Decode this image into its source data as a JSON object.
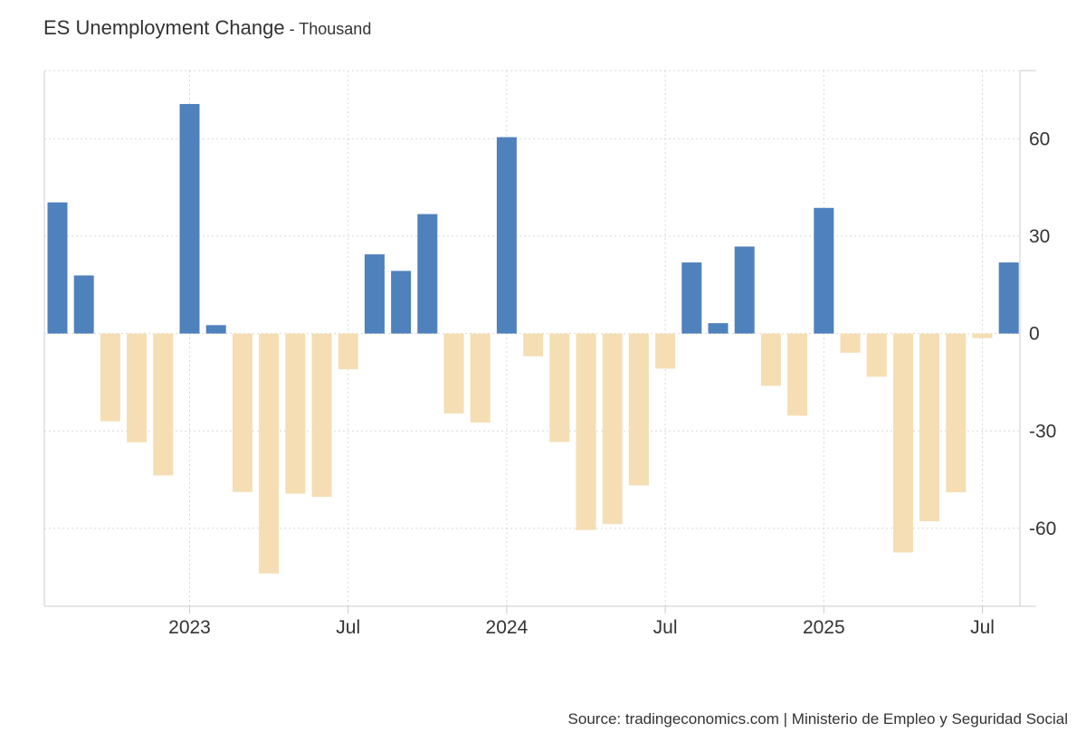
{
  "header": {
    "title": "ES Unemployment Change",
    "unit_suffix": " - Thousand"
  },
  "footer": {
    "source": "Source: tradingeconomics.com | Ministerio de Empleo y Seguridad Social"
  },
  "colors": {
    "positive": "#4f81bd",
    "negative": "#f5deb3",
    "grid": "#d9d9d9",
    "axis": "#cccccc"
  },
  "chart_data": {
    "type": "bar",
    "title": "ES Unemployment Change",
    "ylabel": "Thousand",
    "ylim": [
      -84,
      81
    ],
    "y_ticks": [
      60,
      30,
      0,
      -30,
      -60
    ],
    "y_axis_position": "right",
    "grid": true,
    "legend": "none",
    "x_ticks": [
      {
        "label": "2023",
        "month_index": 5
      },
      {
        "label": "Jul",
        "month_index": 11
      },
      {
        "label": "2024",
        "month_index": 17
      },
      {
        "label": "Jul",
        "month_index": 23
      },
      {
        "label": "2025",
        "month_index": 29
      },
      {
        "label": "Jul",
        "month_index": 35
      }
    ],
    "categories": [
      "2022-08",
      "2022-09",
      "2022-10",
      "2022-11",
      "2022-12",
      "2023-01",
      "2023-02",
      "2023-03",
      "2023-04",
      "2023-05",
      "2023-06",
      "2023-07",
      "2023-08",
      "2023-09",
      "2023-10",
      "2023-11",
      "2023-12",
      "2024-01",
      "2024-02",
      "2024-03",
      "2024-04",
      "2024-05",
      "2024-06",
      "2024-07",
      "2024-08",
      "2024-09",
      "2024-10",
      "2024-11",
      "2024-12",
      "2025-01",
      "2025-02",
      "2025-03",
      "2025-04",
      "2025-05",
      "2025-06",
      "2025-07",
      "2025-08"
    ],
    "values": [
      40.4,
      17.9,
      -27.0,
      -33.5,
      -43.7,
      70.7,
      2.6,
      -48.8,
      -73.9,
      -49.3,
      -50.3,
      -11.0,
      24.4,
      19.3,
      36.8,
      -24.6,
      -27.4,
      60.5,
      -7.0,
      -33.4,
      -60.5,
      -58.7,
      -46.8,
      -10.8,
      21.9,
      3.2,
      26.8,
      -16.1,
      -25.3,
      38.7,
      -5.9,
      -13.3,
      -67.4,
      -57.8,
      -48.9,
      -1.4,
      21.9
    ]
  }
}
